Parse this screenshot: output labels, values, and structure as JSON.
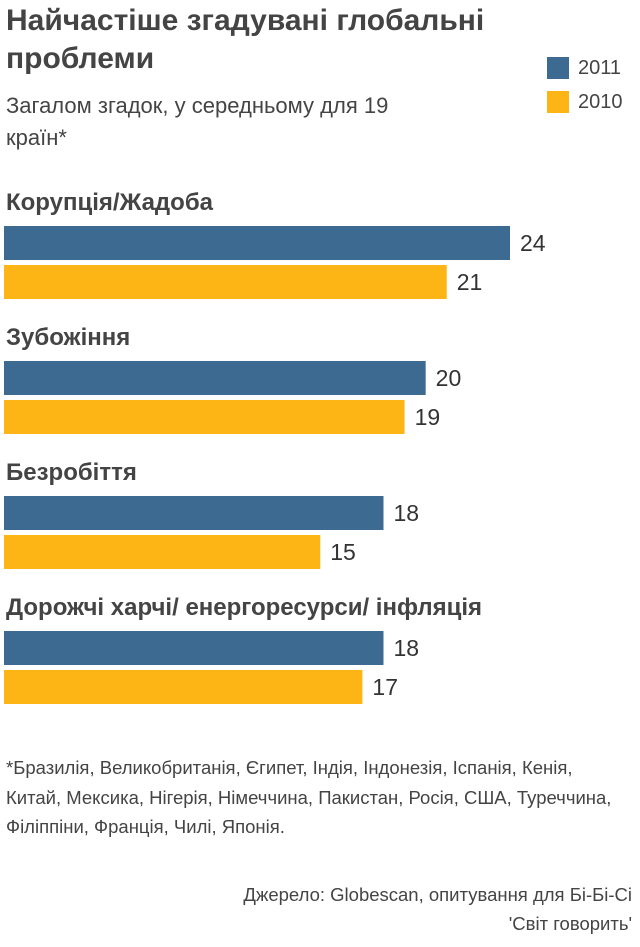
{
  "chart_data": {
    "type": "bar",
    "orientation": "horizontal",
    "title": "Найчастіше згадувані глобальні проблеми",
    "subtitle": "Загалом згадок, у середньому для 19 країн*",
    "categories": [
      "Корупція/Жадоба",
      "Зубожіння",
      "Безробіття",
      "Дорожчі харчі/ енергоресурси/ інфляція"
    ],
    "series": [
      {
        "name": "2011",
        "color": "#3d6a91",
        "values": [
          24,
          20,
          18,
          18
        ]
      },
      {
        "name": "2010",
        "color": "#fdb515",
        "values": [
          21,
          19,
          15,
          17
        ]
      }
    ],
    "xlim": [
      0,
      24
    ],
    "grid": false,
    "legend_position": "top-right"
  },
  "footnote": "*Бразилія, Великобританія, Єгипет, Індія, Індонезія, Іспанія, Кенія, Китай, Мексика, Нігерія, Німеччина, Пакистан, Росія, США, Туреччина, Філіппіни, Франція, Чилі, Японія.",
  "source_line1": "Джерело: Globescan, опитування для Бі-Бі-Сі",
  "source_line2": "'Світ говорить'"
}
